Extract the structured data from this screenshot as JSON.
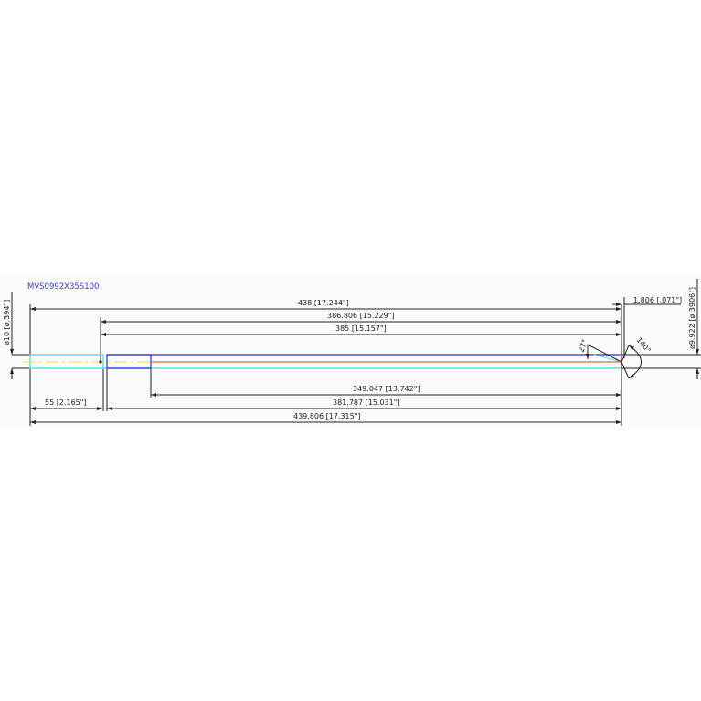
{
  "drawing": {
    "part_number": "MVS0992X35S100",
    "colors": {
      "outline": "#2b2bd8",
      "shank": "#5fe0ee",
      "centerline_yellow": "#f0e030",
      "centerline_red": "#e04020",
      "dimension": "#222222"
    },
    "dimensions": {
      "overall_438": "438 [17.244\"]",
      "d_386": "386.806 [15.229\"]",
      "d_385": "385 [15.157\"]",
      "d_349": "349.047 [13.742\"]",
      "d_381": "381.787 [15.031\"]",
      "d_439": "439.806 [17.315\"]",
      "shank_55": "55 [2.165\"]",
      "tip_1806": "1.806 [.071\"]",
      "shank_dia": "ø10 [ø.394\"]",
      "cut_dia": "ø9.922 [ø.3906\"]",
      "angle_27": "27°",
      "angle_140": "140°"
    }
  }
}
